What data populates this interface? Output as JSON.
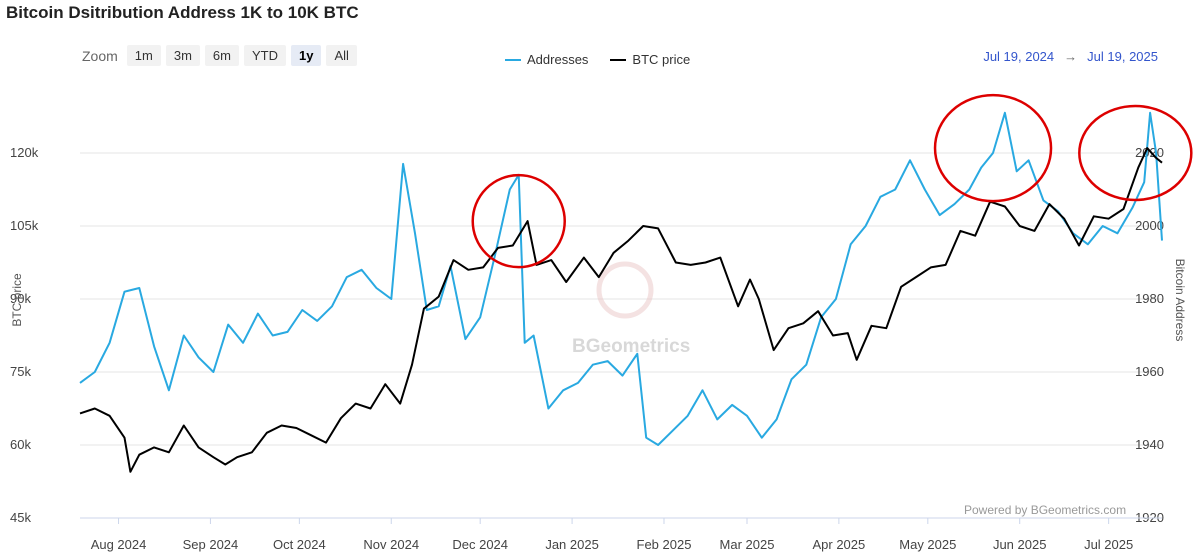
{
  "title": "Bitcoin Dsitribution Address 1K to 10K BTC",
  "zoom": {
    "label": "Zoom",
    "buttons": [
      "1m",
      "3m",
      "6m",
      "YTD",
      "1y",
      "All"
    ],
    "active": "1y"
  },
  "range": {
    "from": "Jul 19, 2024",
    "arrow": "→",
    "to": "Jul 19, 2025"
  },
  "credit": "Powered by BGeometrics.com",
  "watermark": "BGeometrics",
  "colors": {
    "addresses": "#29a9e1",
    "price": "#000000",
    "grid": "#e6e6e6",
    "annotation": "#dd0000"
  },
  "chart_data": {
    "type": "line",
    "title": "Bitcoin Dsitribution Address 1K to 10K BTC",
    "xlabel": "",
    "ylabel_left": "BTC price",
    "ylabel_right": "Bitcoin Address",
    "xlim": [
      "2024-07-19",
      "2025-07-19"
    ],
    "ylim_left": [
      45000,
      135000
    ],
    "ylim_right": [
      1920,
      2040
    ],
    "left_ticks": [
      45000,
      60000,
      75000,
      90000,
      105000,
      120000
    ],
    "left_tick_labels": [
      "45k",
      "60k",
      "75k",
      "90k",
      "105k",
      "120k"
    ],
    "right_ticks": [
      1920,
      1940,
      1960,
      1980,
      2000,
      2020
    ],
    "right_tick_labels": [
      "1920",
      "1940",
      "1960",
      "1980",
      "2000",
      "2020"
    ],
    "x_ticks": [
      "2024-08-01",
      "2024-09-01",
      "2024-10-01",
      "2024-11-01",
      "2024-12-01",
      "2025-01-01",
      "2025-02-01",
      "2025-03-01",
      "2025-04-01",
      "2025-05-01",
      "2025-06-01",
      "2025-07-01"
    ],
    "x_tick_labels": [
      "Aug 2024",
      "Sep 2024",
      "Oct 2024",
      "Nov 2024",
      "Dec 2024",
      "Jan 2025",
      "Feb 2025",
      "Mar 2025",
      "Apr 2025",
      "May 2025",
      "Jun 2025",
      "Jul 2025"
    ],
    "grid": true,
    "legend": "top-center",
    "series": [
      {
        "name": "Addresses",
        "axis": "right",
        "x": [
          "2024-07-19",
          "2024-07-24",
          "2024-07-29",
          "2024-08-03",
          "2024-08-08",
          "2024-08-13",
          "2024-08-18",
          "2024-08-23",
          "2024-08-28",
          "2024-09-02",
          "2024-09-07",
          "2024-09-12",
          "2024-09-17",
          "2024-09-22",
          "2024-09-27",
          "2024-10-02",
          "2024-10-07",
          "2024-10-12",
          "2024-10-17",
          "2024-10-22",
          "2024-10-27",
          "2024-11-01",
          "2024-11-05",
          "2024-11-09",
          "2024-11-13",
          "2024-11-17",
          "2024-11-21",
          "2024-11-26",
          "2024-12-01",
          "2024-12-06",
          "2024-12-11",
          "2024-12-14",
          "2024-12-16",
          "2024-12-19",
          "2024-12-24",
          "2024-12-29",
          "2025-01-03",
          "2025-01-08",
          "2025-01-13",
          "2025-01-18",
          "2025-01-23",
          "2025-01-26",
          "2025-01-30",
          "2025-02-04",
          "2025-02-09",
          "2025-02-14",
          "2025-02-19",
          "2025-02-24",
          "2025-03-01",
          "2025-03-06",
          "2025-03-11",
          "2025-03-16",
          "2025-03-21",
          "2025-03-26",
          "2025-03-31",
          "2025-04-05",
          "2025-04-10",
          "2025-04-15",
          "2025-04-20",
          "2025-04-25",
          "2025-04-30",
          "2025-05-05",
          "2025-05-10",
          "2025-05-15",
          "2025-05-19",
          "2025-05-23",
          "2025-05-27",
          "2025-05-31",
          "2025-06-04",
          "2025-06-09",
          "2025-06-14",
          "2025-06-19",
          "2025-06-24",
          "2025-06-29",
          "2025-07-04",
          "2025-07-09",
          "2025-07-13",
          "2025-07-15",
          "2025-07-17",
          "2025-07-19"
        ],
        "y": [
          1957,
          1960,
          1968,
          1982,
          1983,
          1967,
          1955,
          1970,
          1964,
          1960,
          1973,
          1968,
          1976,
          1970,
          1971,
          1977,
          1974,
          1978,
          1986,
          1988,
          1983,
          1980,
          2017,
          1998,
          1977,
          1978,
          1989,
          1969,
          1975,
          1992,
          2010,
          2014,
          1968,
          1970,
          1950,
          1955,
          1957,
          1962,
          1963,
          1959,
          1965,
          1942,
          1940,
          1944,
          1948,
          1955,
          1947,
          1951,
          1948,
          1942,
          1947,
          1958,
          1962,
          1975,
          1980,
          1995,
          2000,
          2008,
          2010,
          2018,
          2010,
          2003,
          2006,
          2010,
          2016,
          2020,
          2031,
          2015,
          2018,
          2007,
          2004,
          1998,
          1995,
          2000,
          1998,
          2005,
          2012,
          2031,
          2020,
          1996
        ]
      },
      {
        "name": "BTC price",
        "axis": "left",
        "x": [
          "2024-07-19",
          "2024-07-24",
          "2024-07-29",
          "2024-08-03",
          "2024-08-05",
          "2024-08-08",
          "2024-08-13",
          "2024-08-18",
          "2024-08-23",
          "2024-08-28",
          "2024-09-02",
          "2024-09-06",
          "2024-09-10",
          "2024-09-15",
          "2024-09-20",
          "2024-09-25",
          "2024-09-30",
          "2024-10-05",
          "2024-10-10",
          "2024-10-15",
          "2024-10-20",
          "2024-10-25",
          "2024-10-30",
          "2024-11-04",
          "2024-11-08",
          "2024-11-12",
          "2024-11-17",
          "2024-11-22",
          "2024-11-27",
          "2024-12-02",
          "2024-12-07",
          "2024-12-12",
          "2024-12-17",
          "2024-12-20",
          "2024-12-25",
          "2024-12-30",
          "2025-01-05",
          "2025-01-10",
          "2025-01-15",
          "2025-01-20",
          "2025-01-25",
          "2025-01-30",
          "2025-02-05",
          "2025-02-10",
          "2025-02-15",
          "2025-02-20",
          "2025-02-26",
          "2025-03-02",
          "2025-03-05",
          "2025-03-10",
          "2025-03-15",
          "2025-03-20",
          "2025-03-25",
          "2025-03-30",
          "2025-04-04",
          "2025-04-07",
          "2025-04-12",
          "2025-04-17",
          "2025-04-22",
          "2025-04-27",
          "2025-05-02",
          "2025-05-07",
          "2025-05-12",
          "2025-05-17",
          "2025-05-22",
          "2025-05-27",
          "2025-06-01",
          "2025-06-06",
          "2025-06-11",
          "2025-06-16",
          "2025-06-21",
          "2025-06-26",
          "2025-07-01",
          "2025-07-06",
          "2025-07-11",
          "2025-07-14",
          "2025-07-17",
          "2025-07-19"
        ],
        "y": [
          66500,
          67500,
          66000,
          61500,
          54500,
          58000,
          59500,
          58500,
          64000,
          59500,
          57500,
          56000,
          57500,
          58500,
          62500,
          64000,
          63500,
          62000,
          60500,
          65500,
          68500,
          67500,
          72500,
          68500,
          76500,
          88000,
          90500,
          98000,
          96000,
          96500,
          100500,
          101000,
          106000,
          97000,
          98000,
          93500,
          98500,
          94500,
          99500,
          102000,
          105000,
          104500,
          97500,
          97000,
          97500,
          98500,
          88500,
          94000,
          90000,
          79500,
          84000,
          85000,
          87500,
          82500,
          83000,
          77500,
          84500,
          84000,
          92500,
          94500,
          96500,
          97000,
          104000,
          103000,
          110000,
          109000,
          105000,
          104000,
          109500,
          106500,
          101000,
          107000,
          106500,
          108500,
          117000,
          121000,
          119000,
          118000
        ]
      }
    ]
  }
}
